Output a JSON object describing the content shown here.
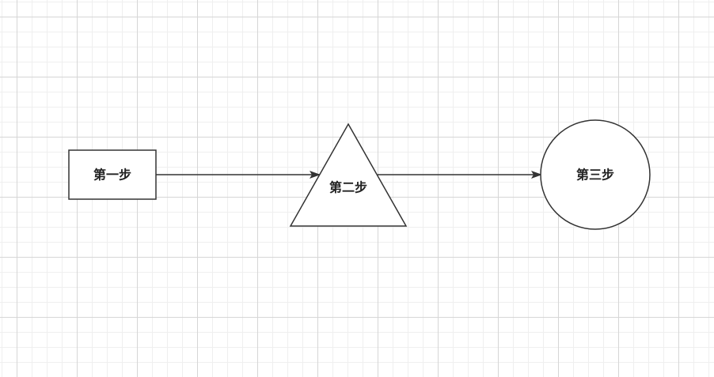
{
  "diagram": {
    "nodes": [
      {
        "id": "step1",
        "shape": "rectangle",
        "label": "第一步"
      },
      {
        "id": "step2",
        "shape": "triangle",
        "label": "第二步"
      },
      {
        "id": "step3",
        "shape": "circle",
        "label": "第三步"
      }
    ],
    "edges": [
      {
        "from": "step1",
        "to": "step2"
      },
      {
        "from": "step2",
        "to": "step3"
      }
    ],
    "colors": {
      "stroke": "#333333",
      "fill": "#ffffff",
      "text": "#222222",
      "grid": "#d6d6d6"
    }
  }
}
